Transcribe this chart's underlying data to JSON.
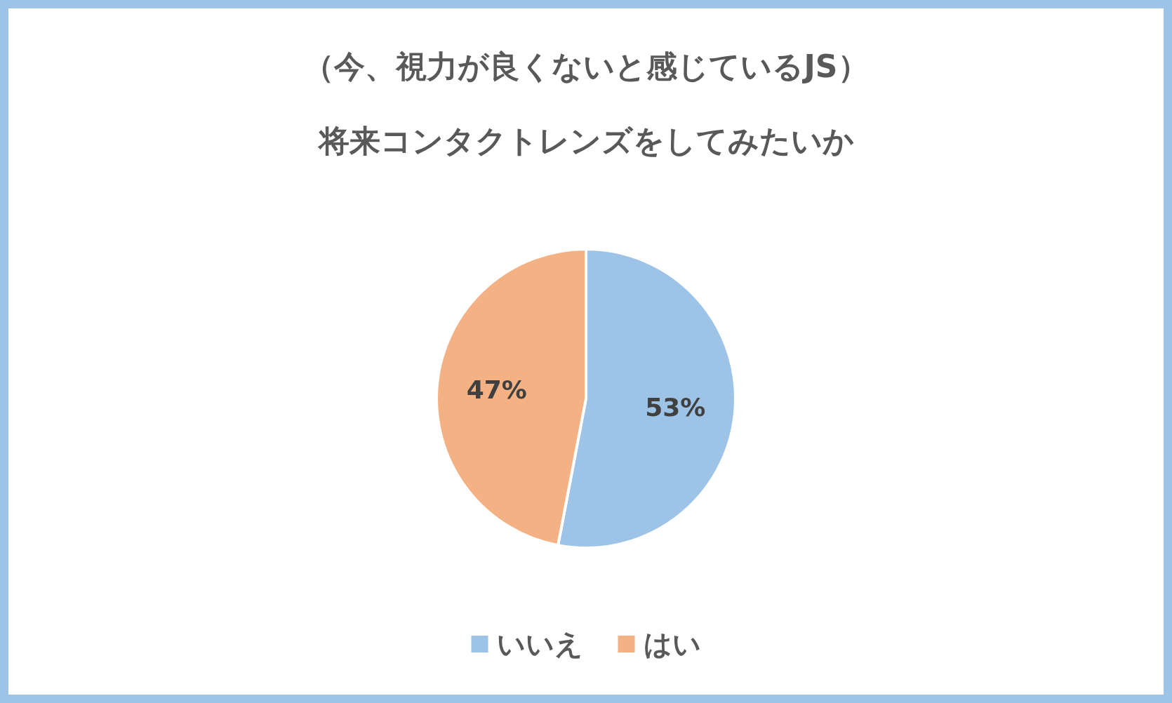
{
  "chart_data": {
    "type": "pie",
    "title": "（今、視力が良くないと感じているJS）",
    "subtitle": "将来コンタクトレンズをしてみたいか",
    "categories": [
      "いいえ",
      "はい"
    ],
    "values": [
      53,
      47
    ],
    "value_labels": [
      "53%",
      "47%"
    ],
    "colors": [
      "#9dc3e6",
      "#f4b183"
    ],
    "legend": "bottom"
  }
}
